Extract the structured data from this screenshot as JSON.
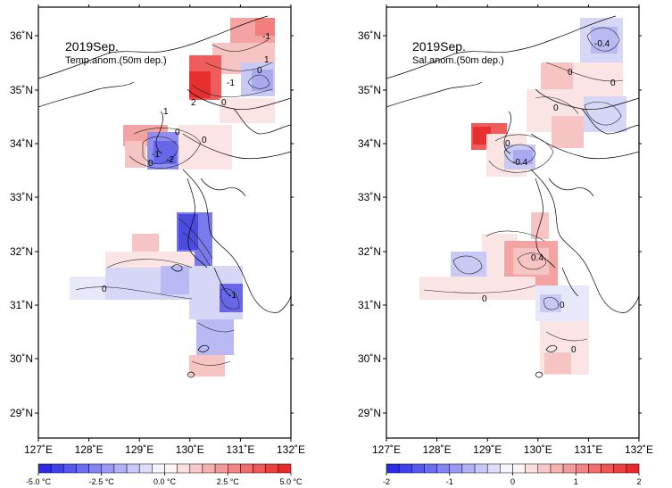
{
  "maps": [
    {
      "id": "temp",
      "title": "2019Sep.",
      "subtitle": "Temp.anom.(50m dep.)",
      "colorbar_labels": [
        "-5.0 °C",
        "-2.5 °C",
        "0.0 °C",
        "2.5 °C",
        "5.0 °C"
      ],
      "colorbar_range": [
        -5,
        5
      ],
      "contour_labels": [
        "-1",
        "0",
        "1",
        "2",
        "-1",
        "0",
        "1",
        "-1",
        "-2",
        "0",
        "0",
        "0",
        "-1",
        "0"
      ]
    },
    {
      "id": "sal",
      "title": "2019Sep.",
      "subtitle": "Sal.anom.(50m dep.)",
      "colorbar_labels": [
        "-2",
        "-1",
        "0",
        "1",
        "2"
      ],
      "colorbar_range": [
        -2,
        2
      ],
      "contour_labels": [
        "-0.4",
        "0",
        "0",
        "0",
        "-0.4",
        "0",
        "0.4",
        "0",
        "0",
        "0"
      ]
    }
  ],
  "lon_labels": [
    "127˚E",
    "128˚E",
    "129˚E",
    "130˚E",
    "131˚E",
    "132˚E"
  ],
  "lat_labels": [
    "36˚N",
    "35˚N",
    "34˚N",
    "33˚N",
    "32˚N",
    "31˚N",
    "30˚N",
    "29˚N"
  ],
  "colors": {
    "negative_max": "#1f1fe6",
    "neutral": "#ffffff",
    "positive_max": "#e61f1f"
  }
}
